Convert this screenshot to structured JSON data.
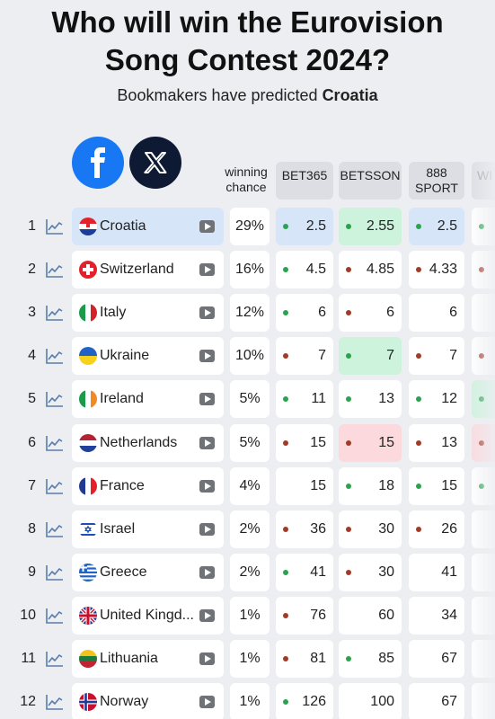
{
  "header": {
    "title_line1": "Who will win the Eurovision",
    "title_line2": "Song Contest 2024?",
    "subtitle_prefix": "Bookmakers have predicted",
    "subtitle_highlight": "Croatia"
  },
  "columns": {
    "chance_line1": "winning",
    "chance_line2": "chance",
    "bet365": "BET365",
    "betsson": "BETSSON",
    "sport888_line1": "888",
    "sport888_line2": "SPORT",
    "next_partial": "WI"
  },
  "colors": {
    "up": "#2aa34f",
    "down": "#a33a28",
    "highlight": "#d6e6f8",
    "green_cell": "#cdf3dd",
    "red_cell": "#fbd9dd"
  },
  "rows": [
    {
      "rank": "1",
      "country": "Croatia",
      "chance": "29%",
      "bet365": "2.5",
      "betsson": "2.55",
      "sport888": "2.5"
    },
    {
      "rank": "2",
      "country": "Switzerland",
      "chance": "16%",
      "bet365": "4.5",
      "betsson": "4.85",
      "sport888": "4.33"
    },
    {
      "rank": "3",
      "country": "Italy",
      "chance": "12%",
      "bet365": "6",
      "betsson": "6",
      "sport888": "6"
    },
    {
      "rank": "4",
      "country": "Ukraine",
      "chance": "10%",
      "bet365": "7",
      "betsson": "7",
      "sport888": "7"
    },
    {
      "rank": "5",
      "country": "Ireland",
      "chance": "5%",
      "bet365": "11",
      "betsson": "13",
      "sport888": "12"
    },
    {
      "rank": "6",
      "country": "Netherlands",
      "chance": "5%",
      "bet365": "15",
      "betsson": "15",
      "sport888": "13"
    },
    {
      "rank": "7",
      "country": "France",
      "chance": "4%",
      "bet365": "15",
      "betsson": "18",
      "sport888": "15"
    },
    {
      "rank": "8",
      "country": "Israel",
      "chance": "2%",
      "bet365": "36",
      "betsson": "30",
      "sport888": "26"
    },
    {
      "rank": "9",
      "country": "Greece",
      "chance": "2%",
      "bet365": "41",
      "betsson": "30",
      "sport888": "41"
    },
    {
      "rank": "10",
      "country": "United Kingd...",
      "chance": "1%",
      "bet365": "76",
      "betsson": "60",
      "sport888": "34"
    },
    {
      "rank": "11",
      "country": "Lithuania",
      "chance": "1%",
      "bet365": "81",
      "betsson": "85",
      "sport888": "67"
    },
    {
      "rank": "12",
      "country": "Norway",
      "chance": "1%",
      "bet365": "126",
      "betsson": "100",
      "sport888": "67"
    }
  ]
}
